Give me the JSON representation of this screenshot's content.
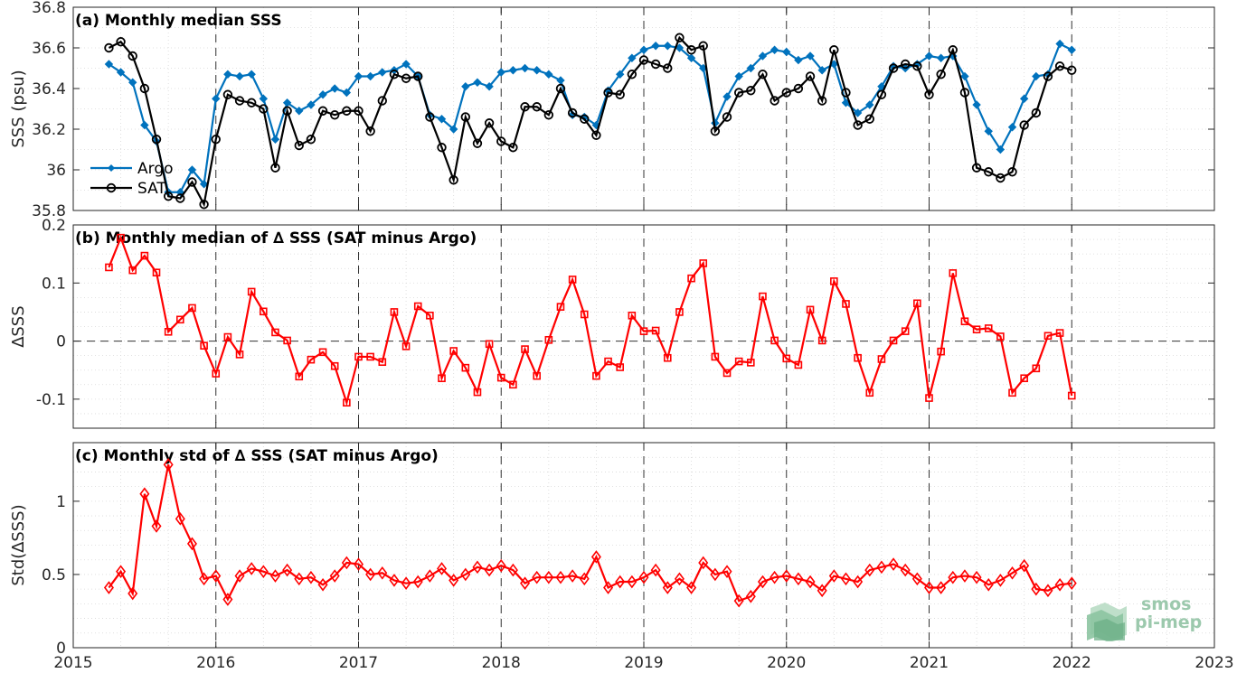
{
  "logo": {
    "line1": "smos",
    "line2": "pi-mep"
  },
  "chart_data": [
    {
      "type": "line",
      "title": "(a) Monthly median SSS",
      "ylabel": "SSS (psu)",
      "xlim": [
        2015,
        2023
      ],
      "ylim": [
        35.8,
        36.8
      ],
      "yticks": [
        35.8,
        36,
        36.2,
        36.4,
        36.6,
        36.8
      ],
      "ytick_labels": [
        "35.8",
        "36",
        "36.2",
        "36.4",
        "36.6",
        "36.8"
      ],
      "legend": {
        "location": "lower-left",
        "entries": [
          "Argo",
          "SAT"
        ]
      },
      "grid": "dotted minor grid, dashed vertical lines at year boundaries",
      "x_start": "2015-04",
      "x_step": "monthly",
      "series": [
        {
          "name": "Argo",
          "color": "#0072BD",
          "marker": "filled-diamond",
          "values": [
            36.52,
            36.48,
            36.43,
            36.22,
            36.14,
            35.89,
            35.89,
            36.0,
            35.93,
            36.35,
            36.47,
            36.46,
            36.47,
            36.35,
            36.15,
            36.33,
            36.29,
            36.32,
            36.37,
            36.4,
            36.38,
            36.46,
            36.46,
            36.48,
            36.49,
            36.52,
            36.46,
            36.27,
            36.25,
            36.2,
            36.41,
            36.43,
            36.41,
            36.48,
            36.49,
            36.5,
            36.49,
            36.47,
            36.44,
            36.27,
            36.26,
            36.22,
            36.39,
            36.47,
            36.55,
            36.59,
            36.61,
            36.61,
            36.6,
            36.55,
            36.5,
            36.23,
            36.36,
            36.46,
            36.5,
            36.56,
            36.59,
            36.58,
            36.54,
            36.56,
            36.49,
            36.52,
            36.33,
            36.28,
            36.32,
            36.41,
            36.51,
            36.5,
            36.52,
            36.56,
            36.55,
            36.56,
            36.46,
            36.32,
            36.19,
            36.1,
            36.21,
            36.35,
            36.46,
            36.47,
            36.62,
            36.59
          ]
        },
        {
          "name": "SAT",
          "color": "#000000",
          "marker": "open-circle",
          "values": [
            36.6,
            36.63,
            36.56,
            36.4,
            36.15,
            35.87,
            35.86,
            35.94,
            35.83,
            36.15,
            36.37,
            36.34,
            36.33,
            36.3,
            36.01,
            36.29,
            36.12,
            36.15,
            36.29,
            36.27,
            36.29,
            36.29,
            36.19,
            36.34,
            36.47,
            36.45,
            36.46,
            36.26,
            36.11,
            35.95,
            36.26,
            36.13,
            36.23,
            36.14,
            36.11,
            36.31,
            36.31,
            36.27,
            36.4,
            36.28,
            36.25,
            36.17,
            36.38,
            36.37,
            36.47,
            36.54,
            36.52,
            36.5,
            36.65,
            36.59,
            36.61,
            36.19,
            36.26,
            36.38,
            36.39,
            36.47,
            36.34,
            36.38,
            36.4,
            36.46,
            36.34,
            36.59,
            36.38,
            36.22,
            36.25,
            36.37,
            36.5,
            36.52,
            36.51,
            36.37,
            36.47,
            36.59,
            36.38,
            36.01,
            35.99,
            35.96,
            35.99,
            36.22,
            36.28,
            36.46,
            36.51,
            36.49
          ]
        }
      ]
    },
    {
      "type": "line",
      "title": "(b) Monthly median of ∆ SSS (SAT minus Argo)",
      "ylabel": "∆SSS",
      "xlim": [
        2015,
        2023
      ],
      "ylim": [
        -0.15,
        0.2
      ],
      "yticks": [
        -0.1,
        0,
        0.1,
        0.2
      ],
      "ytick_labels": [
        "-0.1",
        "0",
        "0.1",
        "0.2"
      ],
      "grid": "dotted minor grid, dashed zero line, dashed vertical lines at year boundaries",
      "x_start": "2015-04",
      "x_step": "monthly",
      "series": [
        {
          "color": "#FF0000",
          "marker": "open-square",
          "values": [
            0.127,
            0.178,
            0.122,
            0.147,
            0.118,
            0.016,
            0.037,
            0.057,
            -0.008,
            -0.056,
            0.007,
            -0.023,
            0.085,
            0.051,
            0.015,
            0.001,
            -0.061,
            -0.032,
            -0.019,
            -0.043,
            -0.106,
            -0.027,
            -0.027,
            -0.036,
            0.05,
            -0.009,
            0.06,
            0.044,
            -0.064,
            -0.017,
            -0.046,
            -0.088,
            -0.005,
            -0.063,
            -0.075,
            -0.014,
            -0.06,
            0.002,
            0.059,
            0.106,
            0.046,
            -0.06,
            -0.035,
            -0.045,
            0.044,
            0.017,
            0.018,
            -0.029,
            0.05,
            0.108,
            0.134,
            -0.027,
            -0.055,
            -0.035,
            -0.037,
            0.077,
            0.001,
            -0.03,
            -0.041,
            0.054,
            0.001,
            0.103,
            0.064,
            -0.029,
            -0.089,
            -0.031,
            0.001,
            0.017,
            0.065,
            -0.098,
            -0.018,
            0.117,
            0.034,
            0.02,
            0.022,
            0.008,
            -0.089,
            -0.064,
            -0.047,
            0.009,
            0.014,
            -0.094
          ]
        }
      ]
    },
    {
      "type": "line",
      "title": "(c) Monthly std of ∆ SSS (SAT minus Argo)",
      "ylabel": "Std(∆SSS)",
      "xlim": [
        2015,
        2023
      ],
      "xticks": [
        2015,
        2016,
        2017,
        2018,
        2019,
        2020,
        2021,
        2022,
        2023
      ],
      "xtick_labels": [
        "2015",
        "2016",
        "2017",
        "2018",
        "2019",
        "2020",
        "2021",
        "2022",
        "2023"
      ],
      "ylim": [
        0,
        1.4
      ],
      "yticks": [
        0,
        0.5,
        1
      ],
      "ytick_labels": [
        "0",
        "0.5",
        "1"
      ],
      "grid": "dotted minor grid, dashed vertical lines at year boundaries",
      "x_start": "2015-04",
      "x_step": "monthly",
      "series": [
        {
          "color": "#FF0000",
          "marker": "open-diamond",
          "values": [
            0.41,
            0.52,
            0.37,
            1.05,
            0.83,
            1.25,
            0.88,
            0.71,
            0.47,
            0.49,
            0.33,
            0.49,
            0.54,
            0.52,
            0.49,
            0.53,
            0.47,
            0.48,
            0.43,
            0.49,
            0.58,
            0.57,
            0.5,
            0.51,
            0.46,
            0.44,
            0.45,
            0.49,
            0.54,
            0.46,
            0.5,
            0.55,
            0.53,
            0.56,
            0.53,
            0.44,
            0.48,
            0.48,
            0.48,
            0.49,
            0.47,
            0.62,
            0.41,
            0.45,
            0.45,
            0.48,
            0.53,
            0.41,
            0.47,
            0.41,
            0.58,
            0.5,
            0.52,
            0.32,
            0.35,
            0.45,
            0.48,
            0.49,
            0.47,
            0.45,
            0.39,
            0.49,
            0.47,
            0.45,
            0.53,
            0.55,
            0.57,
            0.53,
            0.47,
            0.41,
            0.41,
            0.48,
            0.49,
            0.48,
            0.43,
            0.46,
            0.51,
            0.56,
            0.4,
            0.39,
            0.43,
            0.44
          ]
        }
      ]
    }
  ]
}
